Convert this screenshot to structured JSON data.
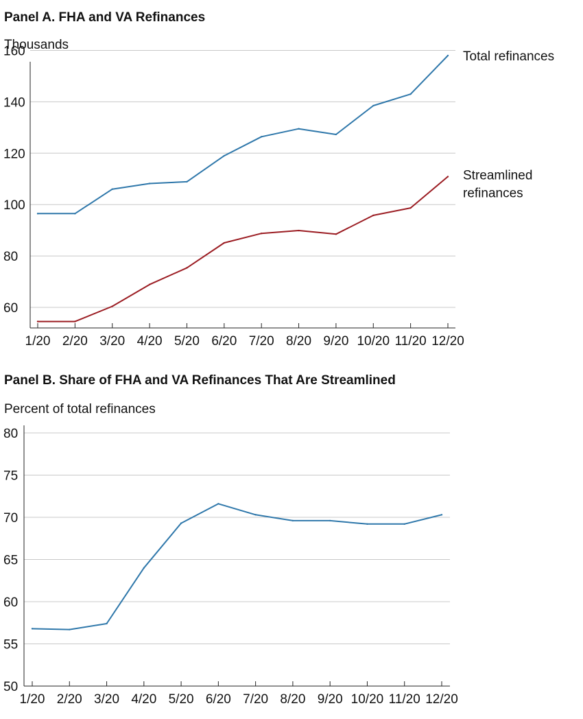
{
  "chart_data": [
    {
      "type": "line",
      "title": "Panel A. FHA and VA Refinances",
      "ylabel": "Thousands",
      "xlabel": "",
      "categories": [
        "1/20",
        "2/20",
        "3/20",
        "4/20",
        "5/20",
        "6/20",
        "7/20",
        "8/20",
        "9/20",
        "10/20",
        "11/20",
        "12/20"
      ],
      "ylim": [
        52,
        162
      ],
      "yticks": [
        60,
        80,
        100,
        120,
        140,
        160
      ],
      "grid": true,
      "legend": "direct labels at line ends (right)",
      "series": [
        {
          "name": "Total refinances",
          "label_lines": [
            "Total refinances"
          ],
          "color": "#2e77aa",
          "values": [
            96.5,
            96.5,
            106,
            108.2,
            108.9,
            119,
            126.4,
            129.5,
            127.3,
            138.5,
            143,
            158
          ]
        },
        {
          "name": "Streamlined refinances",
          "label_lines": [
            "Streamlined",
            "refinances"
          ],
          "color": "#9b1c22",
          "values": [
            54.5,
            54.5,
            60.4,
            68.9,
            75.4,
            85.1,
            88.8,
            89.9,
            88.5,
            95.8,
            98.7,
            110.9
          ]
        }
      ]
    },
    {
      "type": "line",
      "title": "Panel B. Share of FHA and VA Refinances That Are Streamlined",
      "ylabel": "Percent of total refinances",
      "xlabel": "",
      "categories": [
        "1/20",
        "2/20",
        "3/20",
        "4/20",
        "5/20",
        "6/20",
        "7/20",
        "8/20",
        "9/20",
        "10/20",
        "11/20",
        "12/20"
      ],
      "ylim": [
        50,
        80
      ],
      "yticks": [
        50,
        55,
        60,
        65,
        70,
        75,
        80
      ],
      "grid": true,
      "series": [
        {
          "color": "#2e77aa",
          "values": [
            56.8,
            56.7,
            57.4,
            64.0,
            69.3,
            71.6,
            70.3,
            69.6,
            69.6,
            69.2,
            69.2,
            70.3
          ]
        }
      ]
    }
  ]
}
